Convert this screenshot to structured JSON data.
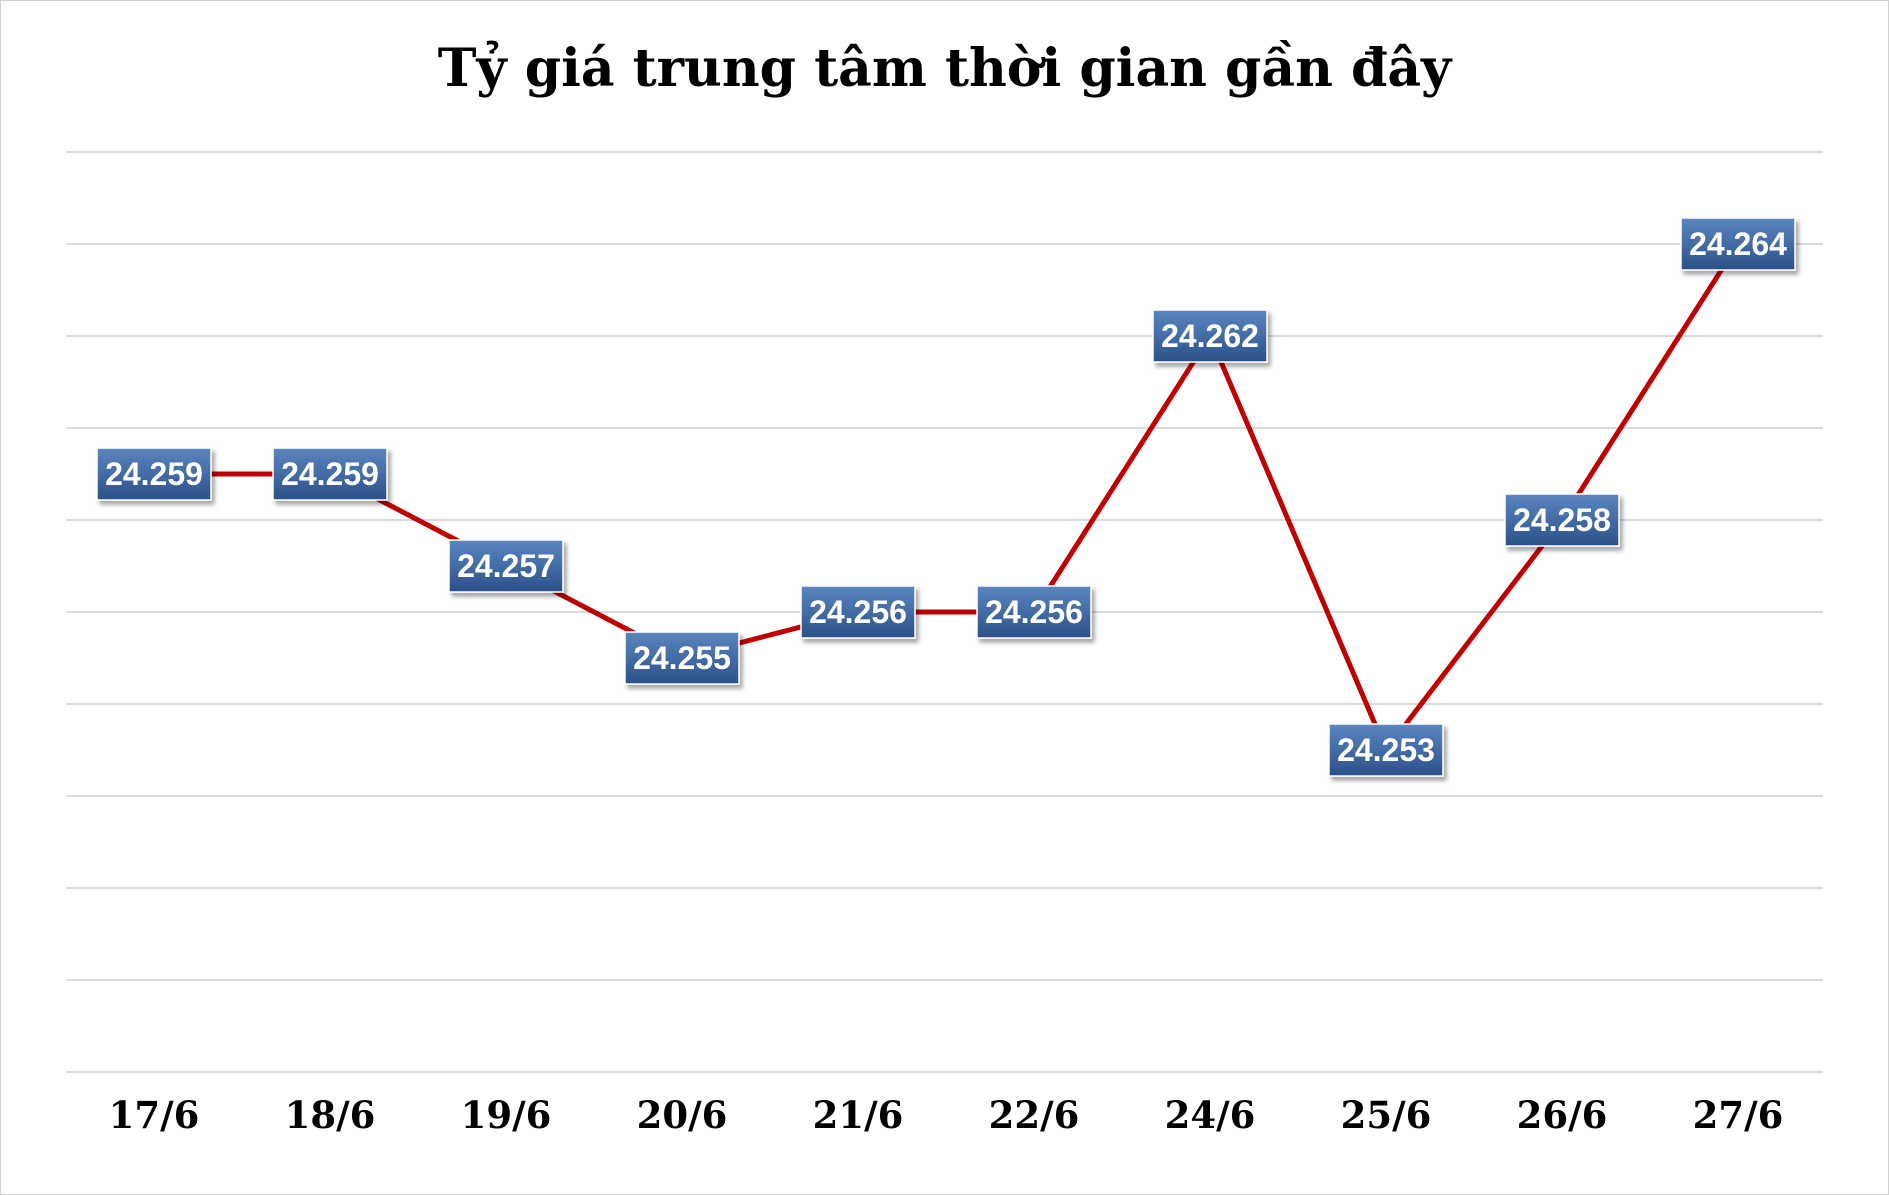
{
  "chart_data": {
    "type": "line",
    "title": "Tỷ giá trung tâm thời gian gần đây",
    "categories": [
      "17/6",
      "18/6",
      "19/6",
      "20/6",
      "21/6",
      "22/6",
      "24/6",
      "25/6",
      "26/6",
      "27/6"
    ],
    "series": [
      {
        "values": [
          24259,
          24259,
          24257,
          24255,
          24256,
          24256,
          24262,
          24253,
          24258,
          24264
        ],
        "labels": [
          "24.259",
          "24.259",
          "24.257",
          "24.255",
          "24.256",
          "24.256",
          "24.262",
          "24.253",
          "24.258",
          "24.264"
        ],
        "color": "#c00000"
      }
    ],
    "ylim": [
      24240,
      24250.04
    ],
    "ylim_note": "",
    "y_axis_labels_shown": false,
    "grid": true,
    "legend": "none",
    "label_color": "#2f5597"
  }
}
